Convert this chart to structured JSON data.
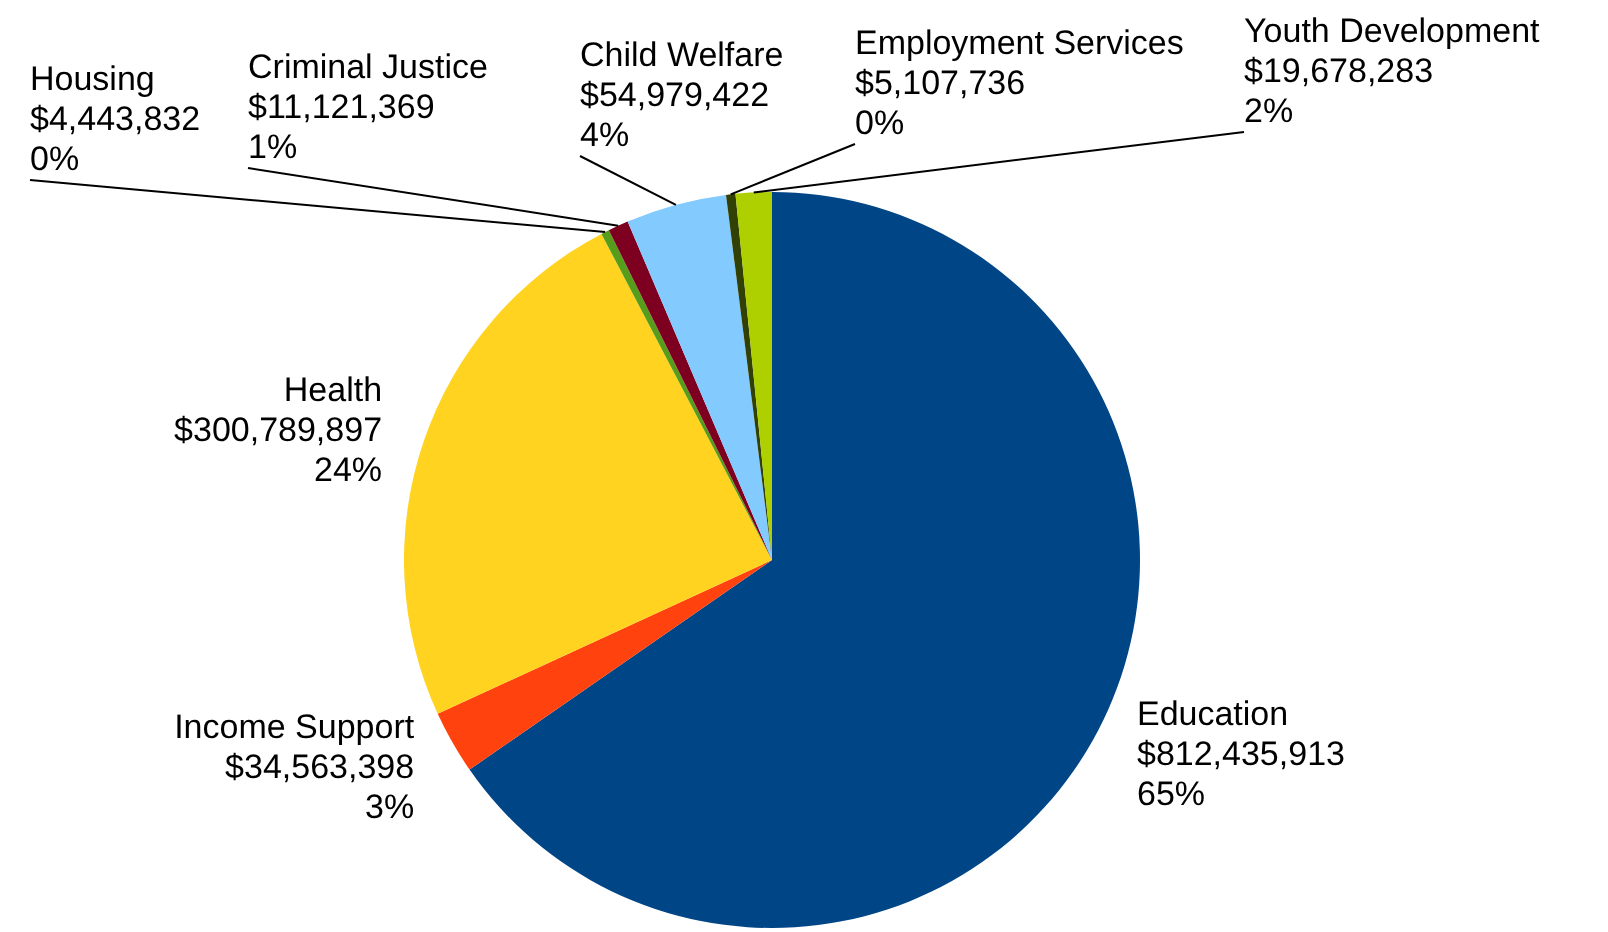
{
  "chart_data": {
    "type": "pie",
    "categories": [
      "Education",
      "Income Support",
      "Health",
      "Housing",
      "Criminal Justice",
      "Child Welfare",
      "Employment Services",
      "Youth Development"
    ],
    "values": [
      812435913,
      34563398,
      300789897,
      4443832,
      11121369,
      54979422,
      5107736,
      19678283
    ],
    "colors": [
      "#004586",
      "#ff420e",
      "#ffd320",
      "#579d1c",
      "#7e0021",
      "#83caff",
      "#314004",
      "#aecf00"
    ],
    "value_labels": [
      "$812,435,913\n65%",
      "$34,563,398\n3%",
      "$300,789,897\n24%",
      "$4,443,832\n0%",
      "$11,121,369\n1%",
      "$54,979,422\n4%",
      "$5,107,736\n0%",
      "$19,678,283\n2%"
    ],
    "legend": false
  }
}
